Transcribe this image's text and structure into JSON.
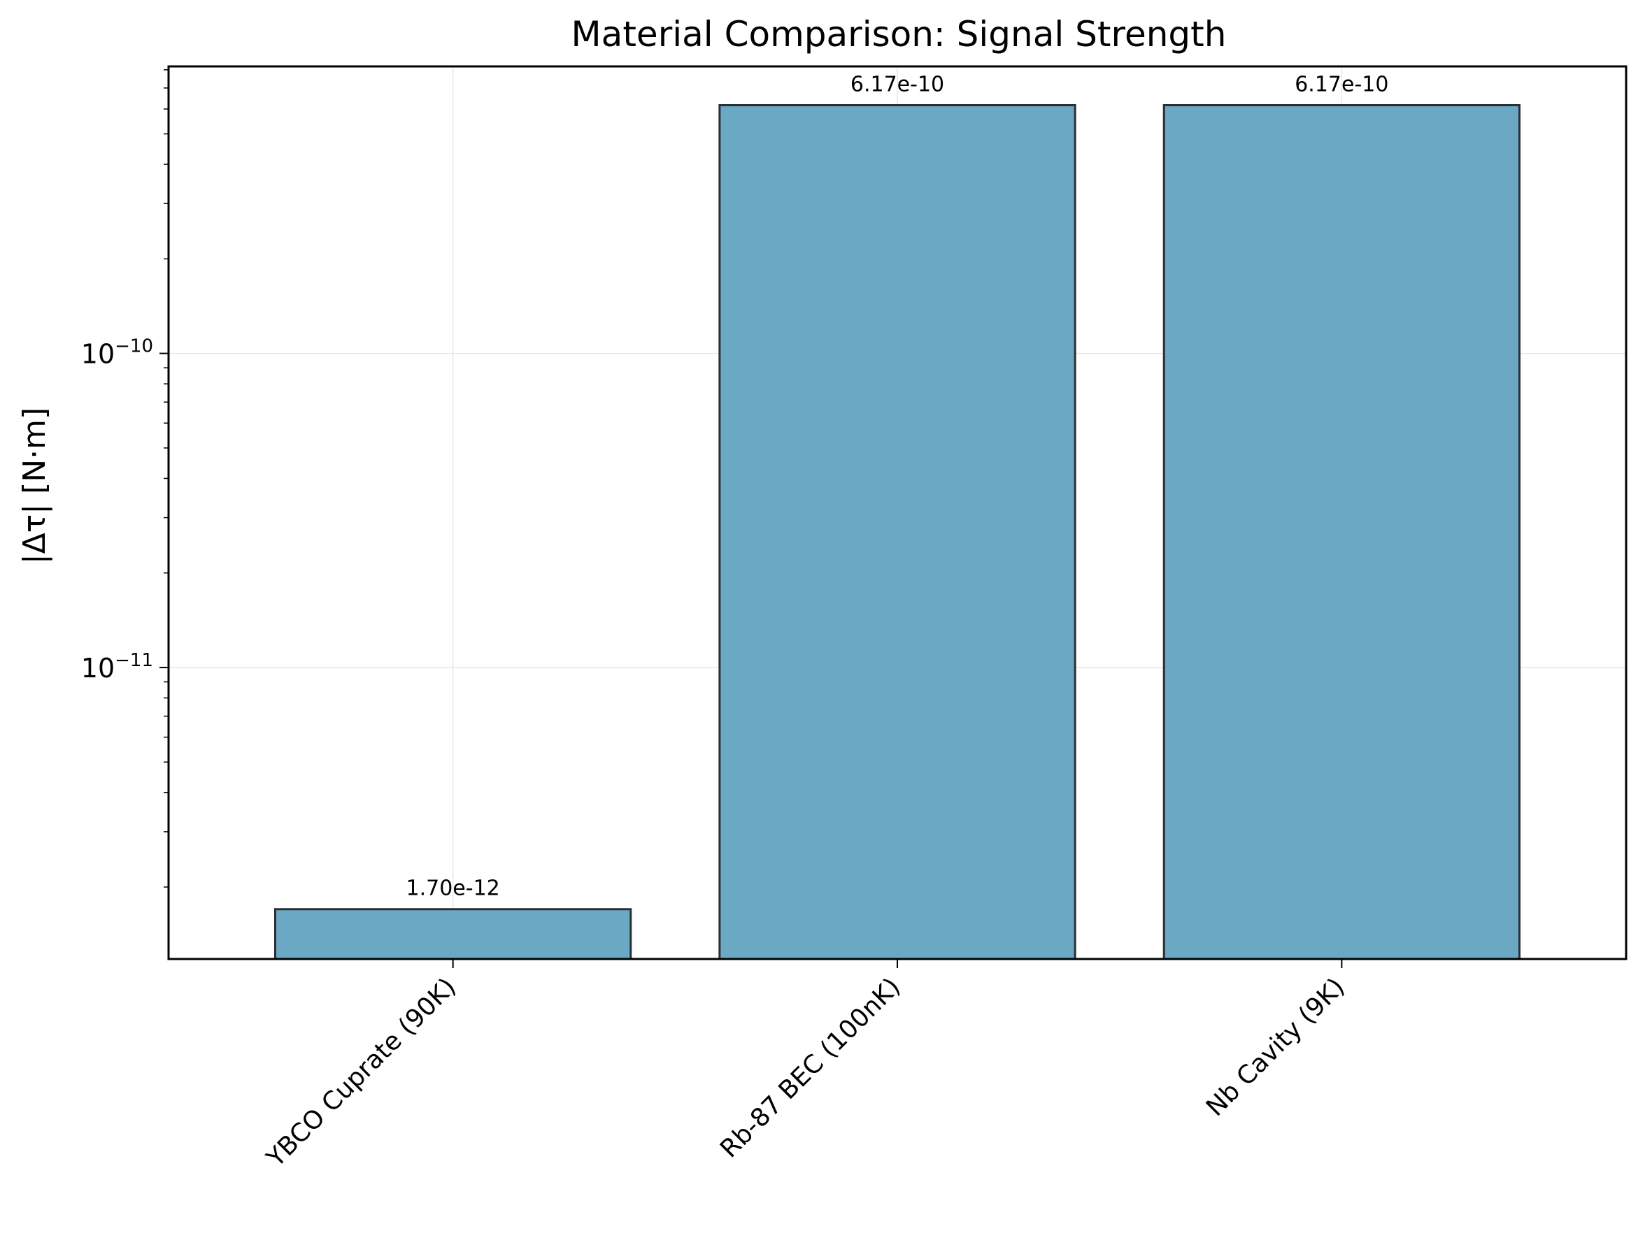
{
  "chart_data": {
    "type": "bar",
    "title": "Material Comparison: Signal Strength",
    "ylabel": "|Δτ| [N·m]",
    "xlabel": "",
    "yscale": "log",
    "ylim": [
      1.18e-12,
      8.2e-10
    ],
    "grid": true,
    "categories": [
      "YBCO Cuprate (90K)",
      "Rb-87 BEC (100nK)",
      "Nb Cavity (9K)"
    ],
    "values": [
      1.7e-12,
      6.17e-10,
      6.17e-10
    ],
    "data_labels": [
      "1.70e-12",
      "6.17e-10",
      "6.17e-10"
    ],
    "yticks": [
      {
        "value": 1e-10,
        "base": "10",
        "exp": "−10"
      },
      {
        "value": 1e-11,
        "base": "10",
        "exp": "−11"
      }
    ],
    "colors": {
      "bar_fill": "#6aa8c3",
      "bar_edge": "#2b2f33",
      "grid": "#e6e6e6",
      "axes": "#000000"
    }
  }
}
